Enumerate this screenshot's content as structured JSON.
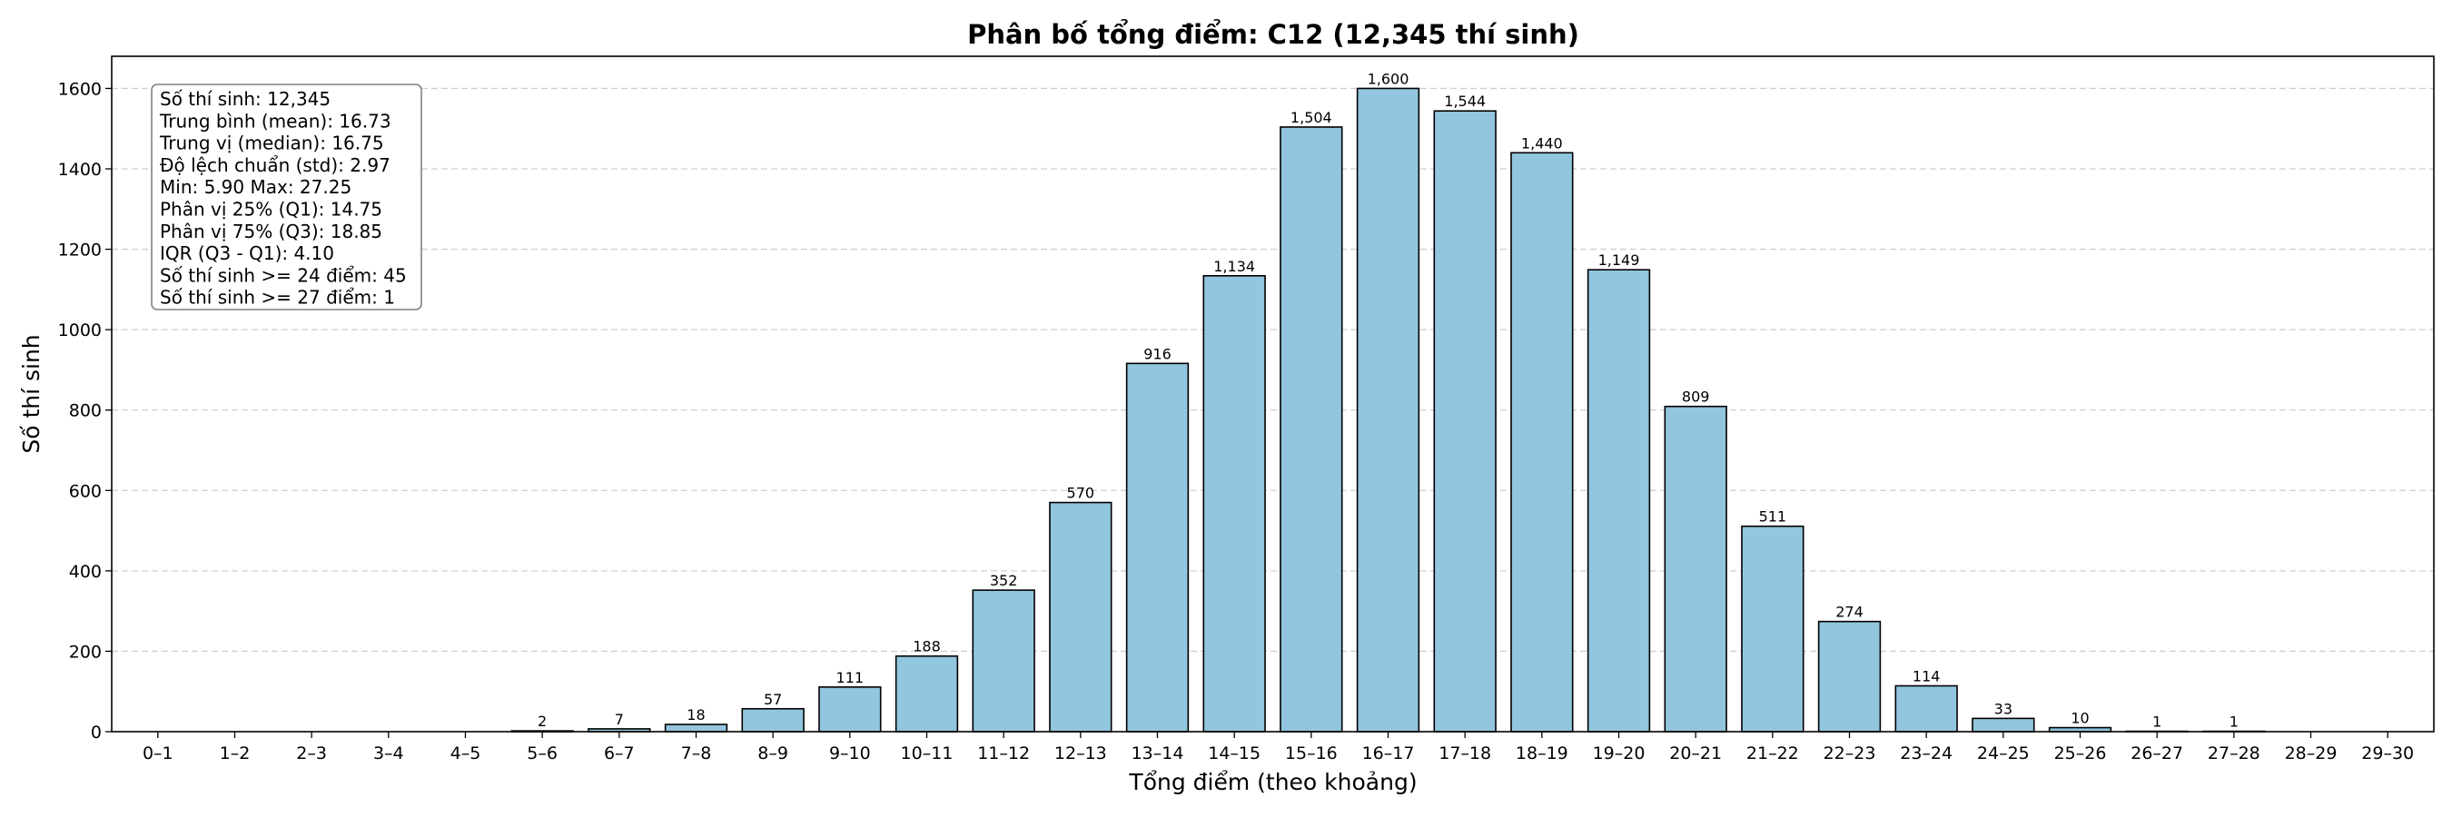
{
  "chart_data": {
    "type": "bar",
    "title": "Phân bố tổng điểm: C12 (12,345 thí sinh)",
    "xlabel": "Tổng điểm (theo khoảng)",
    "ylabel": "Số thí sinh",
    "ylim": [
      0,
      1680
    ],
    "yticks": [
      "0",
      "200",
      "400",
      "600",
      "800",
      "1000",
      "1200",
      "1400",
      "1600"
    ],
    "grid": "y-dashed",
    "bar_color": "#92c5de",
    "bar_edge_color": "#000000",
    "categories": [
      "0–1",
      "1–2",
      "2–3",
      "3–4",
      "4–5",
      "5–6",
      "6–7",
      "7–8",
      "8–9",
      "9–10",
      "10–11",
      "11–12",
      "12–13",
      "13–14",
      "14–15",
      "15–16",
      "16–17",
      "17–18",
      "18–19",
      "19–20",
      "20–21",
      "21–22",
      "22–23",
      "23–24",
      "24–25",
      "25–26",
      "26–27",
      "27–28",
      "28–29",
      "29–30"
    ],
    "values": [
      0,
      0,
      0,
      0,
      0,
      2,
      7,
      18,
      57,
      111,
      188,
      352,
      570,
      916,
      1134,
      1504,
      1600,
      1544,
      1440,
      1149,
      809,
      511,
      274,
      114,
      33,
      10,
      1,
      1,
      0,
      0
    ],
    "value_labels": [
      "",
      "",
      "",
      "",
      "",
      "2",
      "7",
      "18",
      "57",
      "111",
      "188",
      "352",
      "570",
      "916",
      "1,134",
      "1,504",
      "1,600",
      "1,544",
      "1,440",
      "1,149",
      "809",
      "511",
      "274",
      "114",
      "33",
      "10",
      "1",
      "1",
      "",
      ""
    ],
    "stats_box": {
      "position": "top-left",
      "lines": [
        "Số thí sinh: 12,345",
        "Trung bình (mean): 16.73",
        "Trung vị (median): 16.75",
        "Độ lệch chuẩn (std): 2.97",
        "Min: 5.90   Max: 27.25",
        "Phân vị 25% (Q1): 14.75",
        "Phân vị 75% (Q3): 18.85",
        "IQR (Q3 - Q1): 4.10",
        "Số thí sinh >= 24 điểm: 45",
        "Số thí sinh >= 27 điểm: 1"
      ]
    }
  }
}
